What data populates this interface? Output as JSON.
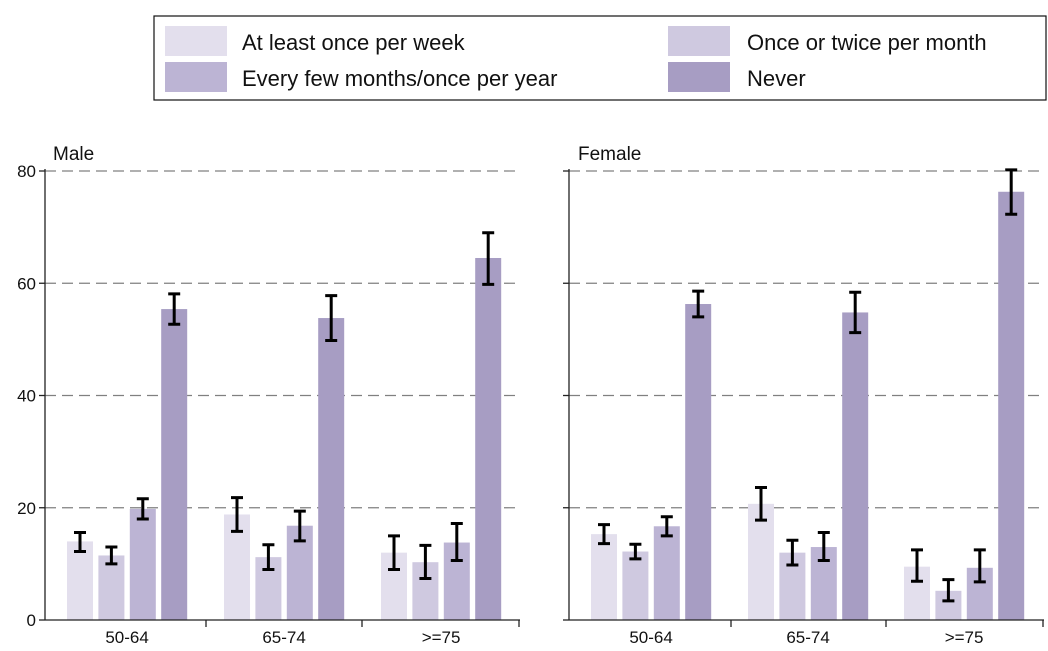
{
  "chart_data": {
    "type": "bar",
    "categories": [
      "50-64",
      "65-74",
      ">=75"
    ],
    "ylim": [
      0,
      80
    ],
    "yticks": [
      "0",
      "20",
      "40",
      "60",
      "80"
    ],
    "grid": true,
    "legend_position": "top",
    "legend": [
      {
        "label": "At least once per week",
        "color": "#e3dfed"
      },
      {
        "label": "Once or twice per month",
        "color": "#cfc9e0"
      },
      {
        "label": "Every few months/once per year",
        "color": "#bcb4d4"
      },
      {
        "label": "Never",
        "color": "#a79dc3"
      }
    ],
    "panels": [
      {
        "title": "Male",
        "series": [
          {
            "name": "At least once per week",
            "values": [
              14.0,
              18.8,
              12.0
            ],
            "err_low": [
              12.2,
              15.8,
              9.0
            ],
            "err_high": [
              15.6,
              21.8,
              15.0
            ]
          },
          {
            "name": "Once or twice per month",
            "values": [
              11.5,
              11.2,
              10.3
            ],
            "err_low": [
              10.0,
              9.0,
              7.4
            ],
            "err_high": [
              13.0,
              13.4,
              13.3
            ]
          },
          {
            "name": "Every few months/once per year",
            "values": [
              19.8,
              16.8,
              13.8
            ],
            "err_low": [
              18.0,
              14.1,
              10.6
            ],
            "err_high": [
              21.6,
              19.4,
              17.2
            ]
          },
          {
            "name": "Never",
            "values": [
              55.4,
              53.8,
              64.5
            ],
            "err_low": [
              52.7,
              49.8,
              59.8
            ],
            "err_high": [
              58.1,
              57.8,
              69.0
            ]
          }
        ]
      },
      {
        "title": "Female",
        "series": [
          {
            "name": "At least once per week",
            "values": [
              15.3,
              20.7,
              9.5
            ],
            "err_low": [
              13.6,
              17.8,
              6.9
            ],
            "err_high": [
              17.0,
              23.6,
              12.5
            ]
          },
          {
            "name": "Once or twice per month",
            "values": [
              12.2,
              12.0,
              5.2
            ],
            "err_low": [
              10.9,
              9.8,
              3.4
            ],
            "err_high": [
              13.5,
              14.2,
              7.2
            ]
          },
          {
            "name": "Every few months/once per year",
            "values": [
              16.7,
              13.0,
              9.3
            ],
            "err_low": [
              15.0,
              10.6,
              6.8
            ],
            "err_high": [
              18.4,
              15.6,
              12.5
            ]
          },
          {
            "name": "Never",
            "values": [
              56.3,
              54.8,
              76.3
            ],
            "err_low": [
              54.0,
              51.2,
              72.3
            ],
            "err_high": [
              58.6,
              58.4,
              80.2
            ]
          }
        ]
      }
    ]
  }
}
